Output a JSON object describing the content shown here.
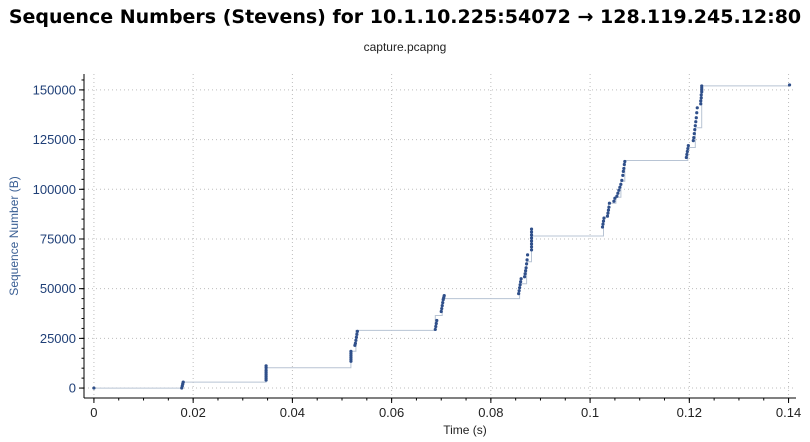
{
  "chart_data": {
    "type": "scatter",
    "title": "Sequence Numbers (Stevens) for 10.1.10.225:54072 → 128.119.245.12:80",
    "subtitle": "capture.pcapng",
    "xlabel": "Time (s)",
    "ylabel": "Sequence Number (B)",
    "xlim": [
      -0.002,
      0.1415
    ],
    "ylim": [
      -5000,
      158000
    ],
    "x_ticks": [
      0,
      0.02,
      0.04,
      0.06,
      0.08,
      0.1,
      0.12,
      0.14
    ],
    "x_tick_labels": [
      "0",
      "0.02",
      "0.04",
      "0.06",
      "0.08",
      "0.1",
      "0.12",
      "0.14"
    ],
    "y_ticks": [
      0,
      25000,
      50000,
      75000,
      100000,
      125000,
      150000
    ],
    "y_tick_labels": [
      "0",
      "25000",
      "50000",
      "75000",
      "100000",
      "125000",
      "150000"
    ],
    "grid": true,
    "colors": {
      "points": "#2f4f8a",
      "step_line": "#b8c4d4",
      "grid": "#bdbdbd"
    },
    "step_line": [
      [
        0,
        0
      ],
      [
        0.0177,
        0
      ],
      [
        0.0177,
        3000
      ],
      [
        0.0347,
        3000
      ],
      [
        0.0347,
        10200
      ],
      [
        0.0518,
        10200
      ],
      [
        0.0518,
        18500
      ],
      [
        0.0528,
        18500
      ],
      [
        0.0528,
        29000
      ],
      [
        0.0688,
        29000
      ],
      [
        0.0688,
        36500
      ],
      [
        0.0702,
        36500
      ],
      [
        0.0702,
        45000
      ],
      [
        0.0858,
        45000
      ],
      [
        0.0858,
        52500
      ],
      [
        0.0872,
        52500
      ],
      [
        0.0872,
        63500
      ],
      [
        0.0882,
        63500
      ],
      [
        0.0882,
        76500
      ],
      [
        0.1027,
        76500
      ],
      [
        0.1027,
        86000
      ],
      [
        0.1037,
        86000
      ],
      [
        0.1037,
        93000
      ],
      [
        0.1052,
        93000
      ],
      [
        0.1052,
        96000
      ],
      [
        0.1062,
        96000
      ],
      [
        0.1062,
        104000
      ],
      [
        0.107,
        104000
      ],
      [
        0.107,
        114500
      ],
      [
        0.1197,
        114500
      ],
      [
        0.1197,
        121000
      ],
      [
        0.1212,
        121000
      ],
      [
        0.1212,
        131000
      ],
      [
        0.1225,
        131000
      ],
      [
        0.1225,
        152000
      ],
      [
        0.1403,
        152000
      ]
    ],
    "series": [
      {
        "x": [
          0,
          0.0177,
          0.0178,
          0.0179,
          0.018,
          0.0347,
          0.0347,
          0.0347,
          0.0347,
          0.0347,
          0.0347,
          0.0347,
          0.0347,
          0.0518,
          0.0518,
          0.0518,
          0.0518,
          0.0518,
          0.0518,
          0.0526,
          0.0527,
          0.0528,
          0.0529,
          0.053,
          0.0531,
          0.0688,
          0.0689,
          0.069,
          0.0691,
          0.07,
          0.0701,
          0.0702,
          0.0703,
          0.0704,
          0.0705,
          0.0706,
          0.0856,
          0.0857,
          0.0858,
          0.0859,
          0.086,
          0.0861,
          0.0868,
          0.0869,
          0.087,
          0.0871,
          0.0872,
          0.0873,
          0.0874,
          0.0882,
          0.0882,
          0.0882,
          0.0882,
          0.0882,
          0.0882,
          0.0882,
          0.0882,
          0.1025,
          0.1026,
          0.1027,
          0.1028,
          0.1035,
          0.1036,
          0.1037,
          0.1038,
          0.1039,
          0.1048,
          0.105,
          0.1054,
          0.1056,
          0.1058,
          0.106,
          0.1062,
          0.1064,
          0.1066,
          0.1067,
          0.1068,
          0.1069,
          0.107,
          0.1194,
          0.1195,
          0.1196,
          0.1197,
          0.1198,
          0.1208,
          0.1209,
          0.121,
          0.1211,
          0.1212,
          0.1213,
          0.1214,
          0.1215,
          0.1216,
          0.1223,
          0.1223,
          0.1224,
          0.1224,
          0.1225,
          0.1225,
          0.1225,
          0.1225,
          0.1402
        ],
        "y": [
          0,
          0,
          1000,
          2000,
          3000,
          4000,
          5000,
          6000,
          7000,
          8000,
          9000,
          10200,
          11200,
          13500,
          14500,
          15500,
          16500,
          17500,
          18500,
          21500,
          22500,
          24000,
          25500,
          27000,
          28500,
          29500,
          31000,
          32500,
          34000,
          38500,
          40000,
          41500,
          43000,
          44500,
          45500,
          46500,
          47500,
          49000,
          50500,
          52000,
          53500,
          55000,
          56000,
          57500,
          59000,
          60500,
          62500,
          64500,
          67000,
          69500,
          71000,
          72500,
          74000,
          75500,
          77000,
          78500,
          80000,
          81000,
          82500,
          84000,
          85500,
          86500,
          88000,
          89500,
          91000,
          93000,
          94000,
          95500,
          96500,
          98000,
          99500,
          101000,
          102500,
          104500,
          107000,
          109000,
          110500,
          112500,
          114000,
          116000,
          117500,
          119000,
          120500,
          122000,
          124500,
          126000,
          128000,
          130000,
          132000,
          134000,
          136000,
          138500,
          141000,
          143000,
          144500,
          146000,
          147500,
          149000,
          150000,
          151000,
          152000,
          152500
        ]
      }
    ]
  }
}
